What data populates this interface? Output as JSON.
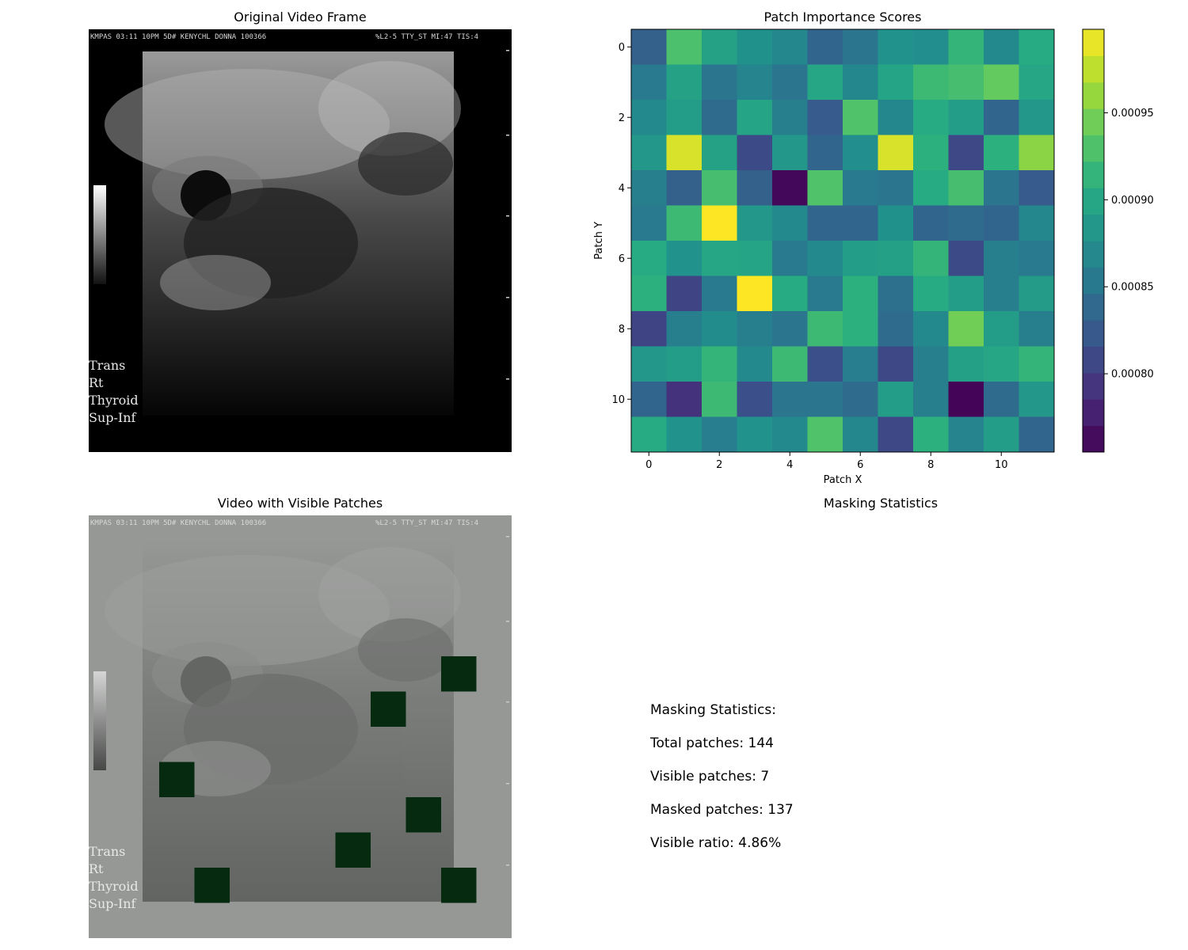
{
  "titles": {
    "original": "Original Video Frame",
    "heatmap": "Patch Importance Scores",
    "visible": "Video with Visible Patches",
    "stats": "Masking Statistics"
  },
  "ultrasound": {
    "header_text": "KMPAS 03:11 10PM 5D# KENYCHL DONNA 100366",
    "header_right": "%L2-5 TTY_ST MI:47 TIS:4",
    "side_labels": [
      "Trans",
      "Rt",
      "Thyroid",
      "Sup-Inf"
    ]
  },
  "chart_data": {
    "type": "heatmap",
    "title": "Patch Importance Scores",
    "xlabel": "Patch X",
    "ylabel": "Patch Y",
    "x_ticks": [
      0,
      2,
      4,
      6,
      8,
      10
    ],
    "y_ticks": [
      0,
      2,
      4,
      6,
      8,
      10
    ],
    "colormap": "viridis",
    "colorbar_ticks": [
      "0.00080",
      "0.00085",
      "0.00090",
      "0.00095"
    ],
    "vmin": 0.000755,
    "vmax": 0.000998,
    "values": [
      [
        0.00083,
        0.000928,
        0.000895,
        0.000878,
        0.000868,
        0.000835,
        0.00085,
        0.00088,
        0.000875,
        0.000915,
        0.00087,
        0.000905
      ],
      [
        0.000855,
        0.000895,
        0.00085,
        0.000865,
        0.00085,
        0.0009,
        0.000868,
        0.000898,
        0.00092,
        0.000925,
        0.00094,
        0.0009
      ],
      [
        0.00087,
        0.00089,
        0.00084,
        0.000898,
        0.00086,
        0.000825,
        0.00093,
        0.000868,
        0.000905,
        0.00089,
        0.000835,
        0.000885
      ],
      [
        0.000885,
        0.000985,
        0.000895,
        0.00081,
        0.000885,
        0.000835,
        0.000875,
        0.000985,
        0.00091,
        0.000808,
        0.00091,
        0.000955
      ],
      [
        0.00086,
        0.00083,
        0.000925,
        0.00083,
        0.00076,
        0.00093,
        0.000855,
        0.00085,
        0.000905,
        0.000925,
        0.00085,
        0.000825
      ],
      [
        0.000855,
        0.00092,
        0.000998,
        0.000885,
        0.00087,
        0.000835,
        0.000835,
        0.000878,
        0.000835,
        0.00084,
        0.000835,
        0.000868
      ],
      [
        0.000905,
        0.00088,
        0.0009,
        0.000898,
        0.000855,
        0.00087,
        0.00089,
        0.000893,
        0.000915,
        0.00081,
        0.00086,
        0.000855
      ],
      [
        0.00091,
        0.000805,
        0.000855,
        0.000998,
        0.000905,
        0.000855,
        0.00091,
        0.000845,
        0.000905,
        0.00089,
        0.00086,
        0.000888
      ],
      [
        0.000805,
        0.00086,
        0.000873,
        0.00086,
        0.00085,
        0.00092,
        0.00091,
        0.00084,
        0.00087,
        0.000945,
        0.00089,
        0.00086
      ],
      [
        0.000885,
        0.00089,
        0.000915,
        0.00087,
        0.00092,
        0.000815,
        0.000858,
        0.000808,
        0.00086,
        0.000893,
        0.0009,
        0.000915
      ],
      [
        0.000835,
        0.00079,
        0.00092,
        0.000815,
        0.00085,
        0.00085,
        0.00084,
        0.00089,
        0.00086,
        0.000758,
        0.00084,
        0.000885
      ],
      [
        0.000905,
        0.00088,
        0.000858,
        0.00088,
        0.00087,
        0.00093,
        0.000868,
        0.000808,
        0.00091,
        0.000865,
        0.00089,
        0.000835
      ]
    ]
  },
  "visible_patches": [
    {
      "x": 10,
      "y": 4
    },
    {
      "x": 8,
      "y": 5
    },
    {
      "x": 2,
      "y": 7
    },
    {
      "x": 9,
      "y": 8
    },
    {
      "x": 7,
      "y": 9
    },
    {
      "x": 3,
      "y": 10
    },
    {
      "x": 10,
      "y": 10
    }
  ],
  "stats": {
    "heading": "Masking Statistics:",
    "total": "Total patches: 144",
    "visible": "Visible patches: 7",
    "masked": "Masked patches: 137",
    "ratio": "Visible ratio: 4.86%"
  },
  "colors": {
    "masked_gray": "#959895",
    "visible_patch": "#062a10"
  }
}
